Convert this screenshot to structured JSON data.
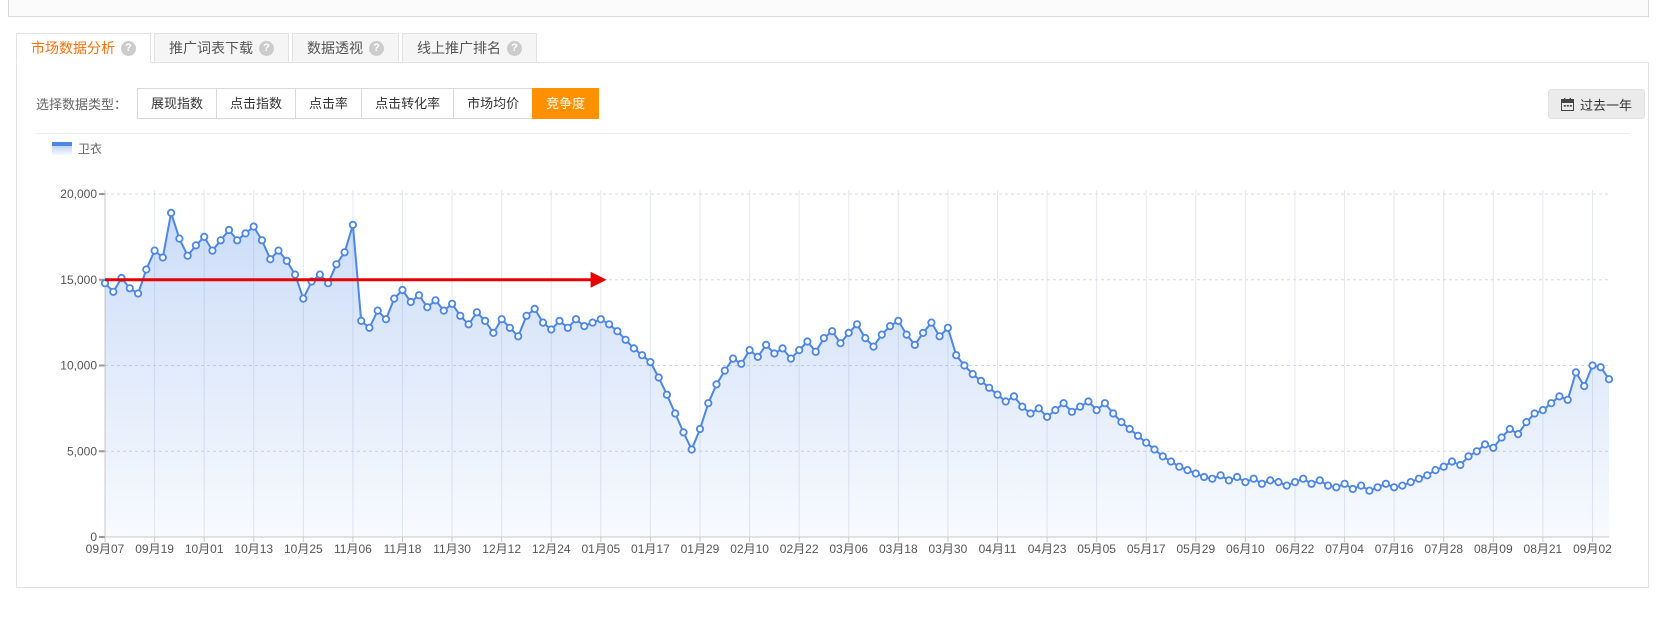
{
  "icons": {
    "help_glyph": "?"
  },
  "tabs": [
    {
      "label": "市场数据分析",
      "active": true
    },
    {
      "label": "推广词表下载",
      "active": false
    },
    {
      "label": "数据透视",
      "active": false
    },
    {
      "label": "线上推广排名",
      "active": false
    }
  ],
  "toolbar": {
    "label": "选择数据类型：",
    "buttons": [
      {
        "label": "展现指数",
        "active": false
      },
      {
        "label": "点击指数",
        "active": false
      },
      {
        "label": "点击率",
        "active": false
      },
      {
        "label": "点击转化率",
        "active": false
      },
      {
        "label": "市场均价",
        "active": false
      },
      {
        "label": "竞争度",
        "active": true
      }
    ],
    "range_button": {
      "label": "过去一年"
    }
  },
  "legend": {
    "label": "卫衣",
    "color": "#4C86E8"
  },
  "chart_data": {
    "type": "line",
    "title": "竞争度 过去一年",
    "series": [
      {
        "name": "卫衣",
        "color": "#4C86E8",
        "point_interval_days": 2,
        "values": [
          14800,
          14300,
          15100,
          14500,
          14200,
          15600,
          16700,
          16300,
          18900,
          17400,
          16400,
          17000,
          17500,
          16700,
          17300,
          17900,
          17300,
          17700,
          18100,
          17300,
          16200,
          16700,
          16100,
          15300,
          13900,
          14900,
          15300,
          14800,
          15900,
          16600,
          18200,
          12600,
          12200,
          13200,
          12700,
          13900,
          14400,
          13700,
          14100,
          13400,
          13800,
          13200,
          13600,
          12900,
          12400,
          13100,
          12600,
          11900,
          12700,
          12200,
          11700,
          12900,
          13300,
          12500,
          12100,
          12600,
          12200,
          12700,
          12300,
          12500,
          12700,
          12400,
          12000,
          11500,
          11000,
          10600,
          10200,
          9300,
          8300,
          7200,
          6100,
          5100,
          6300,
          7800,
          8900,
          9700,
          10400,
          10100,
          10900,
          10500,
          11200,
          10700,
          11000,
          10400,
          10900,
          11400,
          10800,
          11600,
          12000,
          11300,
          11900,
          12400,
          11600,
          11100,
          11800,
          12300,
          12600,
          11800,
          11200,
          11900,
          12500,
          11700,
          12200,
          10600,
          10000,
          9500,
          9100,
          8700,
          8300,
          7900,
          8200,
          7600,
          7200,
          7500,
          7000,
          7400,
          7800,
          7300,
          7600,
          7900,
          7400,
          7800,
          7200,
          6700,
          6300,
          5900,
          5500,
          5100,
          4700,
          4400,
          4100,
          3900,
          3700,
          3500,
          3400,
          3600,
          3300,
          3500,
          3200,
          3400,
          3100,
          3300,
          3200,
          3000,
          3200,
          3400,
          3100,
          3300,
          3000,
          2900,
          3100,
          2800,
          3000,
          2700,
          2900,
          3100,
          2900,
          3000,
          3200,
          3400,
          3600,
          3900,
          4100,
          4400,
          4200,
          4700,
          5000,
          5400,
          5200,
          5800,
          6300,
          6000,
          6700,
          7200,
          7400,
          7800,
          8200,
          8000,
          9600,
          8800,
          10000,
          9900,
          9200
        ]
      }
    ],
    "x_tick_labels": [
      "09月07",
      "09月19",
      "10月01",
      "10月13",
      "10月25",
      "11月06",
      "11月18",
      "11月30",
      "12月12",
      "12月24",
      "01月05",
      "01月17",
      "01月29",
      "02月10",
      "02月22",
      "03月06",
      "03月18",
      "03月30",
      "04月11",
      "04月23",
      "05月05",
      "05月17",
      "05月29",
      "06月10",
      "06月22",
      "07月04",
      "07月16",
      "07月28",
      "08月09",
      "08月21",
      "09月02"
    ],
    "x_tick_every_points": 6,
    "ylim": [
      0,
      20000
    ],
    "yticks": [
      0,
      5000,
      10000,
      15000,
      20000
    ],
    "ytick_labels": [
      "0",
      "5,000",
      "10,000",
      "15,000",
      "20,000"
    ],
    "grid": true,
    "legend_position": "top-left",
    "annotation_arrow": {
      "y_value": 15000,
      "start_point": 0,
      "end_point": 60.7,
      "color": "#e60202"
    },
    "colors": {
      "grid_v": "#e4e8f0",
      "grid_h": "#d8d8d8",
      "axis": "#c9c9c9",
      "tick": "#999999",
      "label": "#555555"
    }
  }
}
